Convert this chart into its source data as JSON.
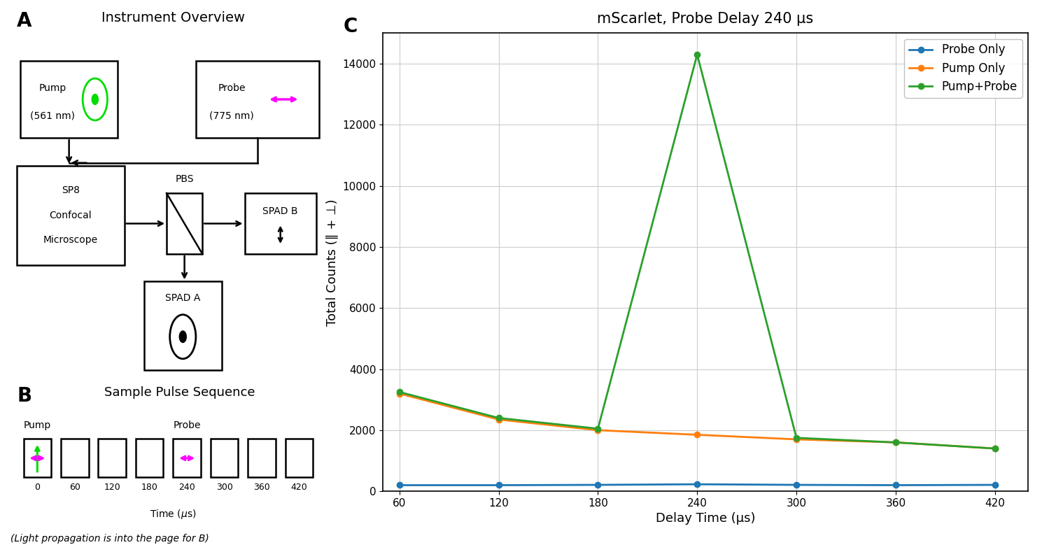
{
  "title_A": "Instrument Overview",
  "title_B": "Sample Pulse Sequence",
  "title_C": "mScarlet, Probe Delay 240 μs",
  "xlabel_C": "Delay Time (μs)",
  "ylabel_C": "Total Counts (∥ + ⊥)",
  "pump_color": "#00dd00",
  "probe_color": "#ff00ff",
  "delay_x": [
    60,
    120,
    180,
    240,
    300,
    360,
    420
  ],
  "probe_only_y": [
    200,
    200,
    210,
    230,
    210,
    200,
    210
  ],
  "pump_only_y": [
    3200,
    2350,
    2000,
    1850,
    1700,
    1600,
    1400
  ],
  "pump_probe_y": [
    3250,
    2400,
    2050,
    14300,
    1750,
    1600,
    1400
  ],
  "probe_only_color": "#1f77b4",
  "pump_only_color": "#ff7f0e",
  "pump_probe_color": "#2ca02c",
  "legend_labels": [
    "Probe Only",
    "Pump Only",
    "Pump+Probe"
  ],
  "ylim": [
    0,
    15000
  ],
  "yticks": [
    0,
    2000,
    4000,
    6000,
    8000,
    10000,
    12000,
    14000
  ],
  "xticks": [
    60,
    120,
    180,
    240,
    300,
    360,
    420
  ],
  "pulse_times": [
    0,
    60,
    120,
    180,
    240,
    300,
    360,
    420
  ],
  "footer_text": "(Light propagation is into the page for B)"
}
